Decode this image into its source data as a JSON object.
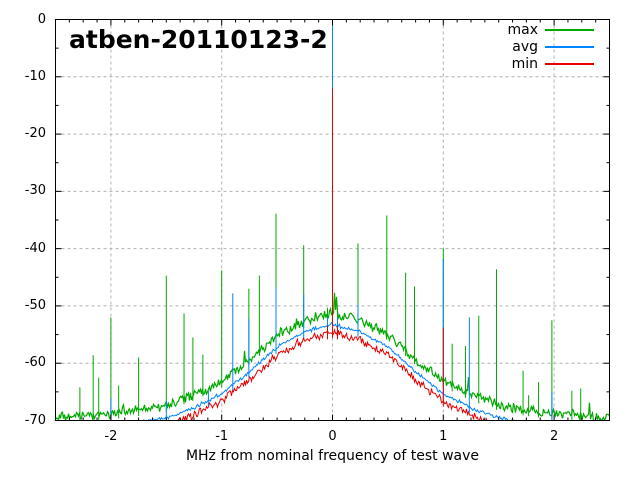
{
  "chart_data": {
    "type": "line",
    "title": "atben-20110123-2",
    "xlabel": "MHz from nominal frequency of test wave",
    "ylabel": "",
    "xlim": [
      -2.5,
      2.5
    ],
    "ylim": [
      -70,
      0
    ],
    "xticks": [
      -2,
      -1,
      0,
      1,
      2
    ],
    "yticks": [
      0,
      -10,
      -20,
      -30,
      -40,
      -50,
      -60,
      -70
    ],
    "x_minor_step": 0.125,
    "y_minor_step": 5,
    "grid": true,
    "grid_color": "#b0b0b0",
    "axis_color": "#000000",
    "legend": {
      "position": "top-right",
      "entries": [
        {
          "name": "max",
          "color": "#00a800"
        },
        {
          "name": "avg",
          "color": "#0084ff"
        },
        {
          "name": "min",
          "color": "#e60000"
        }
      ]
    },
    "noise_floor": {
      "x": [
        -2.5,
        -2.25,
        -2.0,
        -1.75,
        -1.5,
        -1.25,
        -1.0,
        -0.75,
        -0.5,
        -0.25,
        0.0,
        0.25,
        0.5,
        0.75,
        1.0,
        1.25,
        1.5,
        1.75,
        2.0,
        2.25,
        2.5
      ],
      "series": [
        {
          "name": "max",
          "values": [
            -69.6,
            -69.2,
            -68.8,
            -68.2,
            -67.3,
            -65.5,
            -63.2,
            -59.3,
            -55.0,
            -52.6,
            -51.3,
            -52.6,
            -55.0,
            -59.3,
            -63.2,
            -65.5,
            -67.3,
            -68.2,
            -68.8,
            -69.2,
            -69.6
          ]
        },
        {
          "name": "avg",
          "values": [
            -72.0,
            -71.5,
            -71.0,
            -70.4,
            -69.6,
            -67.8,
            -65.3,
            -61.5,
            -57.2,
            -54.5,
            -53.2,
            -54.5,
            -57.2,
            -61.5,
            -65.3,
            -67.8,
            -69.6,
            -70.4,
            -71.0,
            -71.5,
            -72.0
          ]
        },
        {
          "name": "min",
          "values": [
            -73.5,
            -73.0,
            -72.4,
            -71.7,
            -70.9,
            -69.1,
            -66.6,
            -62.9,
            -58.6,
            -55.9,
            -54.6,
            -55.9,
            -58.6,
            -62.9,
            -66.6,
            -69.1,
            -70.9,
            -71.7,
            -72.4,
            -73.0,
            -73.5
          ]
        }
      ]
    },
    "spikes": [
      {
        "x": -2.28,
        "max": -64.2,
        "avg": null,
        "min": null
      },
      {
        "x": -2.16,
        "max": -58.6,
        "avg": null,
        "min": null
      },
      {
        "x": -2.11,
        "max": -62.5,
        "avg": null,
        "min": null
      },
      {
        "x": -2.0,
        "max": -52.0,
        "avg": -66.0,
        "min": null
      },
      {
        "x": -1.93,
        "max": -63.9,
        "avg": null,
        "min": null
      },
      {
        "x": -1.75,
        "max": -59.0,
        "avg": null,
        "min": null
      },
      {
        "x": -1.5,
        "max": -44.7,
        "avg": -66.5,
        "min": null
      },
      {
        "x": -1.34,
        "max": -51.3,
        "avg": null,
        "min": null
      },
      {
        "x": -1.26,
        "max": -55.5,
        "avg": null,
        "min": null
      },
      {
        "x": -1.17,
        "max": -58.5,
        "avg": null,
        "min": null
      },
      {
        "x": -1.12,
        "max": null,
        "avg": -64.8,
        "min": null
      },
      {
        "x": -1.0,
        "max": -43.8,
        "avg": null,
        "min": null
      },
      {
        "x": -0.9,
        "max": null,
        "avg": -47.8,
        "min": null
      },
      {
        "x": -0.755,
        "max": -47.0,
        "avg": -52.3,
        "min": null
      },
      {
        "x": -0.66,
        "max": -44.7,
        "avg": null,
        "min": null
      },
      {
        "x": -0.51,
        "max": -33.9,
        "avg": -46.8,
        "min": null
      },
      {
        "x": -0.26,
        "max": -39.4,
        "avg": -48.0,
        "min": null
      },
      {
        "x": -0.045,
        "max": -50.3,
        "avg": -52.0,
        "min": -53.5
      },
      {
        "x": 0.0,
        "max": 0,
        "avg": -1.0,
        "min": -12.0
      },
      {
        "x": 0.045,
        "max": -50.3,
        "avg": -52.0,
        "min": -53.5
      },
      {
        "x": 0.23,
        "max": -39.1,
        "avg": -49.6,
        "min": null
      },
      {
        "x": 0.49,
        "max": -34.2,
        "avg": null,
        "min": null
      },
      {
        "x": 0.66,
        "max": -44.2,
        "avg": null,
        "min": null
      },
      {
        "x": 0.74,
        "max": -46.6,
        "avg": null,
        "min": null
      },
      {
        "x": 1.0,
        "max": -40.0,
        "avg": -41.8,
        "min": -53.8
      },
      {
        "x": 1.08,
        "max": -56.6,
        "avg": null,
        "min": null
      },
      {
        "x": 1.2,
        "max": -57.0,
        "avg": null,
        "min": null
      },
      {
        "x": 1.235,
        "max": null,
        "avg": -52.0,
        "min": null
      },
      {
        "x": 1.32,
        "max": -51.7,
        "avg": null,
        "min": null
      },
      {
        "x": 1.48,
        "max": -43.6,
        "avg": null,
        "min": null
      },
      {
        "x": 1.72,
        "max": -61.3,
        "avg": null,
        "min": null
      },
      {
        "x": 1.77,
        "max": -65.6,
        "avg": null,
        "min": null
      },
      {
        "x": 1.86,
        "max": -63.3,
        "avg": null,
        "min": null
      },
      {
        "x": 1.98,
        "max": -52.5,
        "avg": -65.0,
        "min": null
      },
      {
        "x": 2.16,
        "max": -64.8,
        "avg": null,
        "min": null
      },
      {
        "x": 2.24,
        "max": -64.4,
        "avg": null,
        "min": null
      }
    ]
  }
}
